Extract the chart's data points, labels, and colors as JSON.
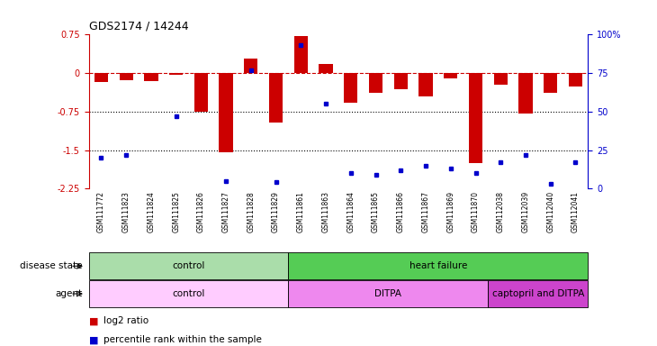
{
  "title": "GDS2174 / 14244",
  "samples": [
    "GSM111772",
    "GSM111823",
    "GSM111824",
    "GSM111825",
    "GSM111826",
    "GSM111827",
    "GSM111828",
    "GSM111829",
    "GSM111861",
    "GSM111863",
    "GSM111864",
    "GSM111865",
    "GSM111866",
    "GSM111867",
    "GSM111869",
    "GSM111870",
    "GSM112038",
    "GSM112039",
    "GSM112040",
    "GSM112041"
  ],
  "log2_ratio": [
    -0.18,
    -0.13,
    -0.15,
    -0.03,
    -0.75,
    -1.55,
    0.28,
    -0.97,
    0.72,
    0.18,
    -0.58,
    -0.38,
    -0.32,
    -0.45,
    -0.1,
    -1.75,
    -0.22,
    -0.78,
    -0.38,
    -0.27
  ],
  "pct_actual": [
    20,
    22,
    null,
    47,
    null,
    5,
    77,
    4,
    93,
    55,
    10,
    9,
    12,
    15,
    13,
    10,
    17,
    22,
    3,
    17
  ],
  "disease_state_groups": [
    {
      "label": "control",
      "start": 0,
      "end": 8,
      "color": "#aaddaa"
    },
    {
      "label": "heart failure",
      "start": 8,
      "end": 20,
      "color": "#55cc55"
    }
  ],
  "agent_groups": [
    {
      "label": "control",
      "start": 0,
      "end": 8,
      "color": "#ffccff"
    },
    {
      "label": "DITPA",
      "start": 8,
      "end": 16,
      "color": "#ee88ee"
    },
    {
      "label": "captopril and DITPA",
      "start": 16,
      "end": 20,
      "color": "#cc44cc"
    }
  ],
  "bar_color": "#CC0000",
  "dot_color": "#0000CC",
  "ref_line_color": "#CC0000",
  "grid_line_color": "#000000",
  "ylim_left": [
    -2.25,
    0.75
  ],
  "ylim_right": [
    0,
    100
  ],
  "yticks_left": [
    0.75,
    0.0,
    -0.75,
    -1.5,
    -2.25
  ],
  "yticks_right": [
    100,
    75,
    50,
    25,
    0
  ],
  "background_color": "#ffffff"
}
